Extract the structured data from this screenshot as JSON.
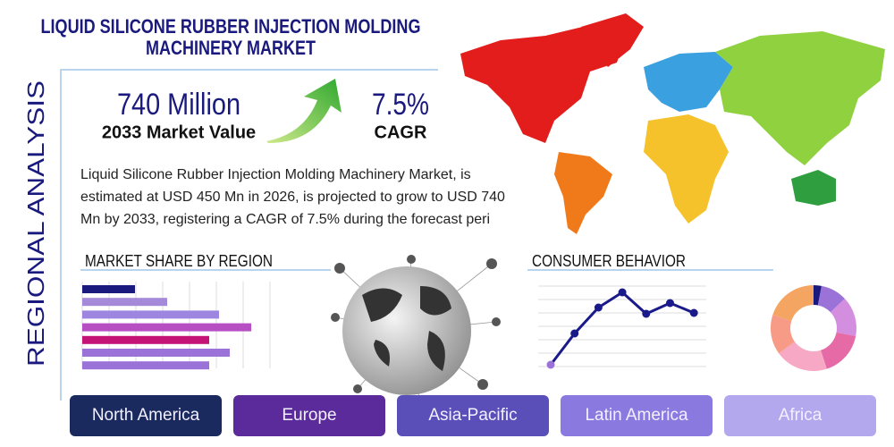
{
  "header": {
    "title_lines": [
      "LIQUID SILICONE RUBBER INJECTION MOLDING",
      "MACHINERY MARKET"
    ]
  },
  "side_label": "REGIONAL ANALYSIS",
  "stats": [
    {
      "value": "740 Million",
      "label": "2033 Market Value"
    },
    {
      "value": "7.5%",
      "label": "CAGR"
    }
  ],
  "description": "Liquid Silicone Rubber Injection Molding Machinery Market, is estimated at USD 450 Mn in 2026, is projected to grow to USD 740 Mn by 2033, registering a CAGR of 7.5% during the forecast peri",
  "market_share": {
    "type": "bar",
    "title": "MARKET SHARE BY REGION",
    "values": [
      59,
      95,
      153,
      189,
      142,
      165,
      142
    ],
    "colors": [
      "#1a1a7e",
      "#a48ad8",
      "#9d86e0",
      "#b74fc4",
      "#c41577",
      "#9a72d8",
      "#9a72d8"
    ],
    "xlim": [
      0,
      210
    ]
  },
  "consumer_behavior": {
    "type": "line",
    "title": "CONSUMER BEHAVIOR",
    "values": [
      2,
      37,
      66,
      83,
      59,
      71,
      60
    ],
    "color": "#1a1a8a",
    "ylim": [
      0,
      90
    ]
  },
  "donut": {
    "type": "pie",
    "values": [
      3,
      10,
      15,
      17,
      20,
      15,
      20
    ],
    "colors": [
      "#1a1a7e",
      "#9a72d8",
      "#d48ee0",
      "#e66aa6",
      "#f7a8c4",
      "#f79a86",
      "#f5a562"
    ]
  },
  "regions": [
    "North America",
    "Europe",
    "Asia-Pacific",
    "Latin America",
    "Africa"
  ]
}
